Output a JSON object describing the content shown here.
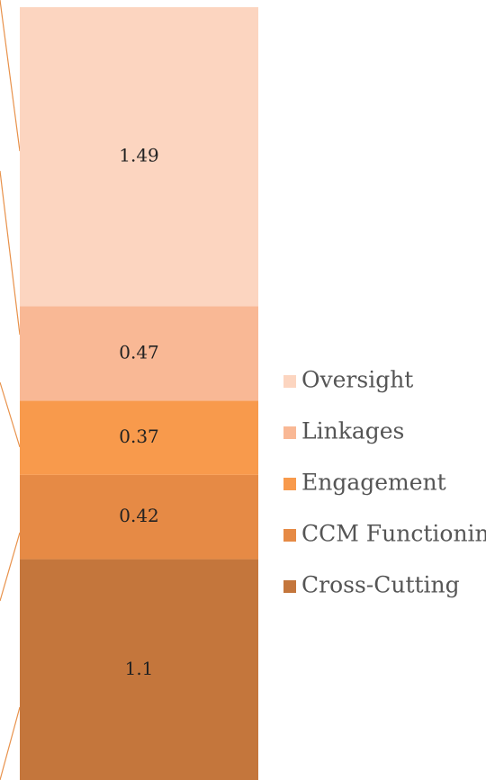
{
  "chart_data": {
    "type": "stacked-bar",
    "series": [
      {
        "name": "Cross-Cutting",
        "color": "#c4763c",
        "values": [
          1.1
        ]
      },
      {
        "name": "CCM Functioning",
        "color": "#e68a45",
        "values": [
          0.42
        ]
      },
      {
        "name": "Engagement",
        "color": "#f89a4c",
        "values": [
          0.37
        ]
      },
      {
        "name": "Linkages",
        "color": "#f9b895",
        "values": [
          0.47
        ]
      },
      {
        "name": "Oversight",
        "color": "#fcd5c0",
        "values": [
          1.49
        ]
      }
    ],
    "legend": "right"
  }
}
